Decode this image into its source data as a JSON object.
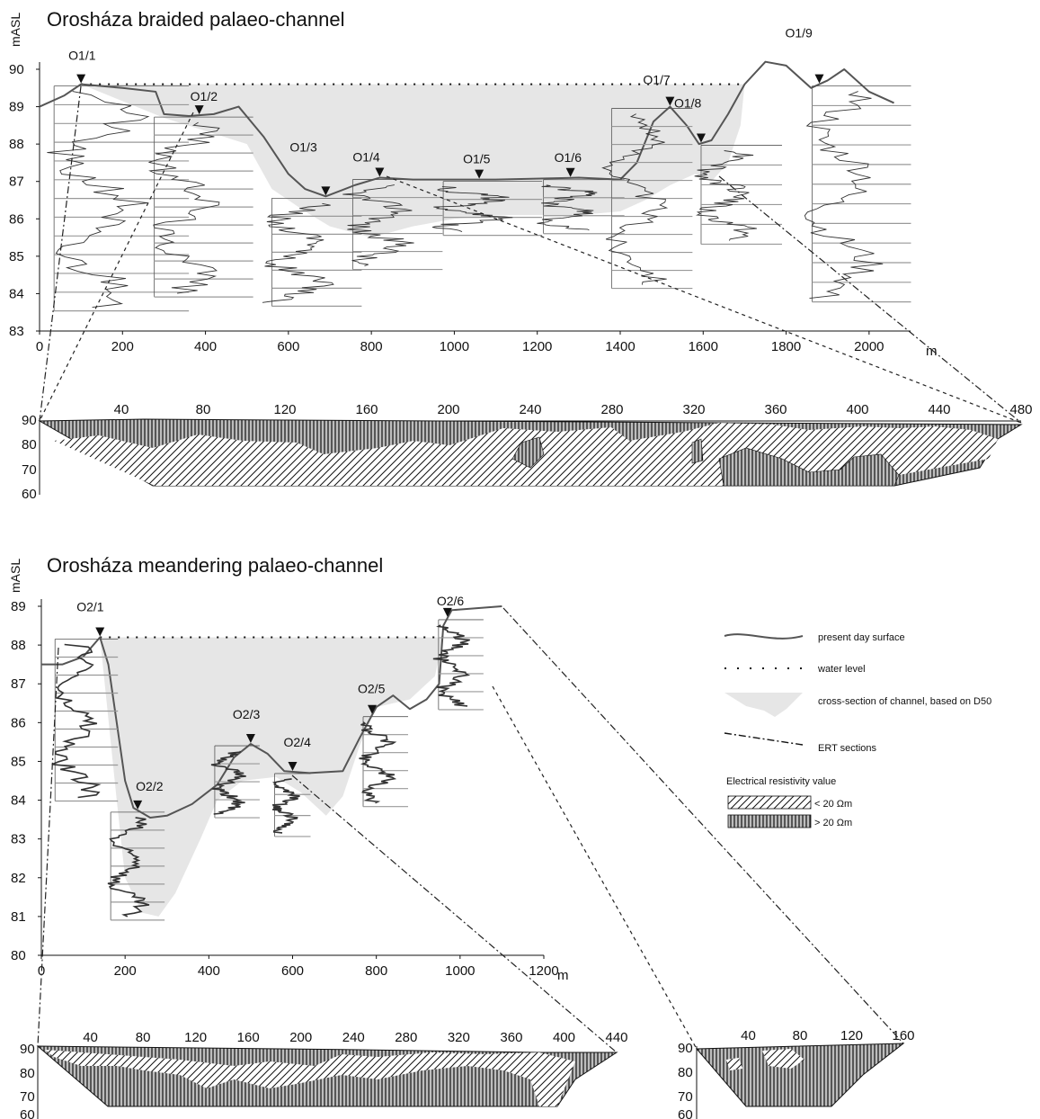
{
  "colors": {
    "channel": "#e6e6e6",
    "surface": "#555555",
    "ink": "#111111"
  },
  "chart_data": [
    {
      "type": "line",
      "title": "Orosháza braided palaeo-channel",
      "ylabel": "mASL",
      "xlabel": "m",
      "ylim": [
        83,
        90
      ],
      "xlim": [
        0,
        2100
      ],
      "x_ticks": [
        "0",
        "200",
        "400",
        "600",
        "800",
        "1000",
        "1200",
        "1400",
        "1600",
        "1800",
        "2000"
      ],
      "y_ticks": [
        "83",
        "84",
        "85",
        "86",
        "87",
        "88",
        "89",
        "90"
      ],
      "water_level": 89.6,
      "surface": [
        [
          0,
          89.0
        ],
        [
          60,
          89.3
        ],
        [
          100,
          89.6
        ],
        [
          200,
          89.5
        ],
        [
          280,
          89.4
        ],
        [
          300,
          88.8
        ],
        [
          360,
          88.75
        ],
        [
          420,
          88.8
        ],
        [
          480,
          89.0
        ],
        [
          540,
          88.2
        ],
        [
          600,
          87.2
        ],
        [
          640,
          86.8
        ],
        [
          690,
          86.6
        ],
        [
          760,
          86.9
        ],
        [
          820,
          87.1
        ],
        [
          900,
          87.05
        ],
        [
          1100,
          87.05
        ],
        [
          1300,
          87.1
        ],
        [
          1400,
          87.05
        ],
        [
          1440,
          87.5
        ],
        [
          1480,
          88.6
        ],
        [
          1520,
          89.0
        ],
        [
          1560,
          88.5
        ],
        [
          1590,
          88.0
        ],
        [
          1620,
          88.1
        ],
        [
          1660,
          88.8
        ],
        [
          1700,
          89.6
        ],
        [
          1750,
          90.2
        ],
        [
          1800,
          90.1
        ],
        [
          1860,
          89.5
        ],
        [
          1900,
          89.7
        ],
        [
          1940,
          90.0
        ],
        [
          2000,
          89.4
        ],
        [
          2060,
          89.1
        ]
      ],
      "channel_bottom": [
        [
          100,
          89.6
        ],
        [
          300,
          88.7
        ],
        [
          500,
          88.0
        ],
        [
          560,
          86.8
        ],
        [
          640,
          86.2
        ],
        [
          700,
          85.8
        ],
        [
          800,
          85.5
        ],
        [
          900,
          85.8
        ],
        [
          1000,
          86.0
        ],
        [
          1100,
          86.1
        ],
        [
          1200,
          86.1
        ],
        [
          1300,
          86.1
        ],
        [
          1400,
          86.2
        ],
        [
          1460,
          86.5
        ],
        [
          1520,
          86.9
        ],
        [
          1580,
          87.2
        ],
        [
          1620,
          87.0
        ],
        [
          1660,
          87.5
        ],
        [
          1690,
          88.5
        ],
        [
          1700,
          89.6
        ]
      ],
      "boreholes": [
        {
          "name": "O1/1",
          "x": 100
        },
        {
          "name": "O1/2",
          "x": 385
        },
        {
          "name": "O1/3",
          "x": 690
        },
        {
          "name": "O1/4",
          "x": 820
        },
        {
          "name": "O1/5",
          "x": 1060
        },
        {
          "name": "O1/6",
          "x": 1280
        },
        {
          "name": "O1/7",
          "x": 1520
        },
        {
          "name": "O1/8",
          "x": 1595
        },
        {
          "name": "O1/9",
          "x": 1880
        }
      ]
    },
    {
      "type": "area",
      "title": "",
      "ylim": [
        60,
        90
      ],
      "xlim": [
        0,
        480
      ],
      "x_ticks": [
        "40",
        "80",
        "120",
        "160",
        "200",
        "240",
        "280",
        "320",
        "360",
        "400",
        "440",
        "480"
      ],
      "y_ticks": [
        "60",
        "70",
        "80",
        "90"
      ]
    },
    {
      "type": "line",
      "title": "Orosháza meandering palaeo-channel",
      "ylabel": "mASL",
      "xlabel": "m",
      "ylim": [
        80,
        89
      ],
      "xlim": [
        0,
        1200
      ],
      "x_ticks": [
        "0",
        "200",
        "400",
        "600",
        "800",
        "1000",
        "1200"
      ],
      "y_ticks": [
        "80",
        "81",
        "82",
        "83",
        "84",
        "85",
        "86",
        "87",
        "88",
        "89"
      ],
      "water_level": 88.2,
      "surface": [
        [
          0,
          87.5
        ],
        [
          50,
          87.5
        ],
        [
          100,
          87.7
        ],
        [
          140,
          88.2
        ],
        [
          160,
          87.5
        ],
        [
          180,
          86.0
        ],
        [
          200,
          84.5
        ],
        [
          220,
          83.8
        ],
        [
          260,
          83.55
        ],
        [
          300,
          83.6
        ],
        [
          360,
          83.9
        ],
        [
          420,
          84.4
        ],
        [
          460,
          85.1
        ],
        [
          500,
          85.45
        ],
        [
          540,
          85.2
        ],
        [
          580,
          84.75
        ],
        [
          640,
          84.7
        ],
        [
          720,
          84.75
        ],
        [
          760,
          85.6
        ],
        [
          800,
          86.4
        ],
        [
          840,
          86.7
        ],
        [
          880,
          86.35
        ],
        [
          920,
          86.6
        ],
        [
          950,
          87.0
        ],
        [
          960,
          88.5
        ],
        [
          980,
          88.9
        ],
        [
          1100,
          89.0
        ]
      ],
      "channel_bottom": [
        [
          140,
          88.2
        ],
        [
          180,
          84.0
        ],
        [
          200,
          82.0
        ],
        [
          240,
          81.1
        ],
        [
          280,
          81.0
        ],
        [
          320,
          81.6
        ],
        [
          380,
          83.0
        ],
        [
          420,
          84.0
        ],
        [
          480,
          84.5
        ],
        [
          560,
          84.6
        ],
        [
          620,
          84.2
        ],
        [
          680,
          83.6
        ],
        [
          720,
          84.1
        ],
        [
          760,
          85.4
        ],
        [
          800,
          86.4
        ],
        [
          880,
          86.6
        ],
        [
          940,
          87.2
        ],
        [
          960,
          88.2
        ]
      ],
      "boreholes": [
        {
          "name": "O2/1",
          "x": 140
        },
        {
          "name": "O2/2",
          "x": 230
        },
        {
          "name": "O2/3",
          "x": 500
        },
        {
          "name": "O2/4",
          "x": 600
        },
        {
          "name": "O2/5",
          "x": 790
        },
        {
          "name": "O2/6",
          "x": 970
        }
      ]
    },
    {
      "type": "area",
      "title": "",
      "ylim": [
        60,
        90
      ],
      "xlim": [
        0,
        440
      ],
      "x_ticks": [
        "40",
        "80",
        "120",
        "160",
        "200",
        "240",
        "280",
        "320",
        "360",
        "400",
        "440"
      ],
      "y_ticks": [
        "60",
        "70",
        "80",
        "90"
      ]
    },
    {
      "type": "area",
      "title": "",
      "ylim": [
        60,
        90
      ],
      "xlim": [
        0,
        160
      ],
      "x_ticks": [
        "40",
        "80",
        "120",
        "160"
      ],
      "y_ticks": [
        "60",
        "70",
        "80",
        "90"
      ]
    }
  ],
  "legend": {
    "items": [
      {
        "symbol": "surface",
        "label": "present day surface"
      },
      {
        "symbol": "dotted",
        "label": "water level"
      },
      {
        "symbol": "channel",
        "label": "cross-section of channel, based on D50"
      },
      {
        "symbol": "ert",
        "label": "ERT sections"
      }
    ],
    "resistivity_title": "Electrical resistivity value",
    "resistivity_items": [
      {
        "symbol": "diagonal",
        "label": "< 20 Ωm"
      },
      {
        "symbol": "vertical",
        "label": "> 20 Ωm"
      }
    ]
  }
}
